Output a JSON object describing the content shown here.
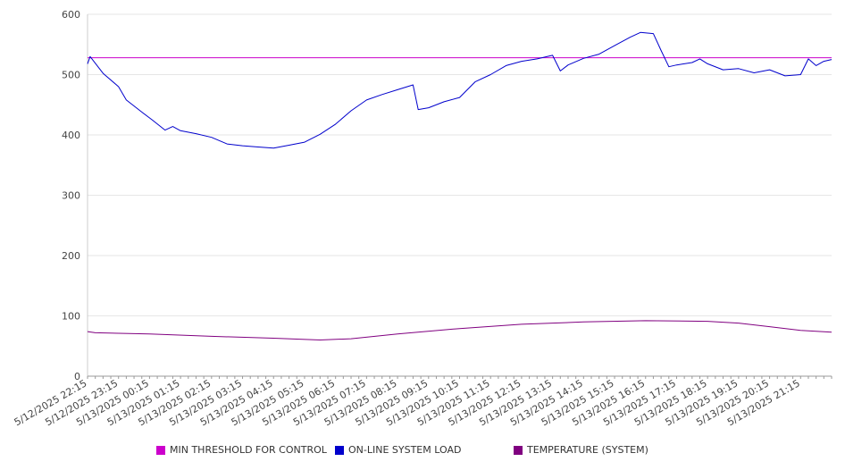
{
  "chart_data": {
    "type": "line",
    "title": "",
    "xlabel": "",
    "ylabel": "",
    "ylim": [
      0,
      600
    ],
    "yticks": [
      0,
      100,
      200,
      300,
      400,
      500,
      600
    ],
    "grid": true,
    "legend_position": "bottom",
    "x_labels": [
      "5/12/2025 22:15",
      "5/12/2025 23:15",
      "5/13/2025 00:15",
      "5/13/2025 01:15",
      "5/13/2025 02:15",
      "5/13/2025 03:15",
      "5/13/2025 04:15",
      "5/13/2025 05:15",
      "5/13/2025 06:15",
      "5/13/2025 07:15",
      "5/13/2025 08:15",
      "5/13/2025 09:15",
      "5/13/2025 10:15",
      "5/13/2025 11:15",
      "5/13/2025 12:15",
      "5/13/2025 13:15",
      "5/13/2025 14:15",
      "5/13/2025 15:15",
      "5/13/2025 16:15",
      "5/13/2025 17:15",
      "5/13/2025 18:15",
      "5/13/2025 19:15",
      "5/13/2025 20:15",
      "5/13/2025 21:15"
    ],
    "x_range": [
      "5/12/2025 22:15",
      "5/13/2025 22:15"
    ],
    "series": [
      {
        "name": "MIN THRESHOLD FOR CONTROL",
        "color": "#cc00cc",
        "points": [
          [
            "5/12/2025 22:15",
            528
          ],
          [
            "5/13/2025 22:15",
            528
          ]
        ]
      },
      {
        "name": "ON-LINE SYSTEM LOAD",
        "color": "#0000cc",
        "points": [
          [
            "5/12/2025 22:15",
            518
          ],
          [
            "5/12/2025 22:20",
            530
          ],
          [
            "5/12/2025 22:45",
            502
          ],
          [
            "5/12/2025 23:15",
            480
          ],
          [
            "5/12/2025 23:30",
            458
          ],
          [
            "5/13/2025 00:00",
            438
          ],
          [
            "5/13/2025 00:20",
            425
          ],
          [
            "5/13/2025 00:45",
            408
          ],
          [
            "5/13/2025 01:00",
            414
          ],
          [
            "5/13/2025 01:15",
            407
          ],
          [
            "5/13/2025 01:45",
            402
          ],
          [
            "5/13/2025 02:15",
            396
          ],
          [
            "5/13/2025 02:45",
            385
          ],
          [
            "5/13/2025 03:15",
            382
          ],
          [
            "5/13/2025 03:45",
            380
          ],
          [
            "5/13/2025 04:15",
            378
          ],
          [
            "5/13/2025 04:45",
            383
          ],
          [
            "5/13/2025 05:15",
            388
          ],
          [
            "5/13/2025 05:45",
            401
          ],
          [
            "5/13/2025 06:15",
            418
          ],
          [
            "5/13/2025 06:45",
            440
          ],
          [
            "5/13/2025 07:15",
            458
          ],
          [
            "5/13/2025 07:45",
            467
          ],
          [
            "5/13/2025 08:15",
            475
          ],
          [
            "5/13/2025 08:45",
            483
          ],
          [
            "5/13/2025 08:55",
            442
          ],
          [
            "5/13/2025 09:15",
            445
          ],
          [
            "5/13/2025 09:45",
            455
          ],
          [
            "5/13/2025 10:15",
            462
          ],
          [
            "5/13/2025 10:45",
            488
          ],
          [
            "5/13/2025 11:15",
            500
          ],
          [
            "5/13/2025 11:45",
            515
          ],
          [
            "5/13/2025 12:15",
            522
          ],
          [
            "5/13/2025 12:45",
            526
          ],
          [
            "5/13/2025 13:15",
            532
          ],
          [
            "5/13/2025 13:30",
            506
          ],
          [
            "5/13/2025 13:45",
            516
          ],
          [
            "5/13/2025 14:15",
            527
          ],
          [
            "5/13/2025 14:45",
            534
          ],
          [
            "5/13/2025 15:15",
            548
          ],
          [
            "5/13/2025 15:45",
            562
          ],
          [
            "5/13/2025 16:05",
            570
          ],
          [
            "5/13/2025 16:30",
            568
          ],
          [
            "5/13/2025 16:45",
            540
          ],
          [
            "5/13/2025 17:00",
            513
          ],
          [
            "5/13/2025 17:15",
            516
          ],
          [
            "5/13/2025 17:45",
            520
          ],
          [
            "5/13/2025 18:00",
            526
          ],
          [
            "5/13/2025 18:15",
            518
          ],
          [
            "5/13/2025 18:45",
            508
          ],
          [
            "5/13/2025 19:15",
            510
          ],
          [
            "5/13/2025 19:45",
            503
          ],
          [
            "5/13/2025 20:15",
            508
          ],
          [
            "5/13/2025 20:45",
            498
          ],
          [
            "5/13/2025 21:15",
            500
          ],
          [
            "5/13/2025 21:30",
            526
          ],
          [
            "5/13/2025 21:45",
            515
          ],
          [
            "5/13/2025 22:00",
            522
          ],
          [
            "5/13/2025 22:15",
            525
          ]
        ]
      },
      {
        "name": "TEMPERATURE (SYSTEM)",
        "color": "#800080",
        "points": [
          [
            "5/12/2025 22:15",
            74
          ],
          [
            "5/12/2025 22:30",
            72
          ],
          [
            "5/13/2025 00:15",
            70
          ],
          [
            "5/13/2025 02:15",
            66
          ],
          [
            "5/13/2025 04:15",
            63
          ],
          [
            "5/13/2025 05:45",
            60
          ],
          [
            "5/13/2025 06:45",
            62
          ],
          [
            "5/13/2025 08:15",
            70
          ],
          [
            "5/13/2025 10:15",
            79
          ],
          [
            "5/13/2025 12:15",
            86
          ],
          [
            "5/13/2025 14:15",
            90
          ],
          [
            "5/13/2025 16:15",
            92
          ],
          [
            "5/13/2025 18:15",
            91
          ],
          [
            "5/13/2025 19:15",
            88
          ],
          [
            "5/13/2025 20:15",
            82
          ],
          [
            "5/13/2025 21:15",
            76
          ],
          [
            "5/13/2025 22:15",
            73
          ]
        ]
      }
    ]
  }
}
